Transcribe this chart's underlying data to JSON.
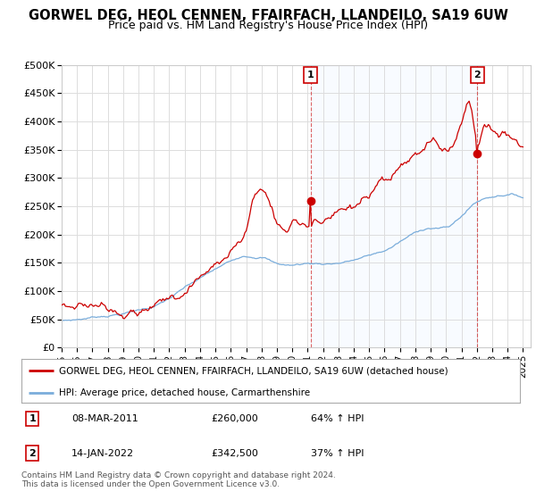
{
  "title": "GORWEL DEG, HEOL CENNEN, FFAIRFACH, LLANDEILO, SA19 6UW",
  "subtitle": "Price paid vs. HM Land Registry's House Price Index (HPI)",
  "title_fontsize": 10.5,
  "subtitle_fontsize": 9,
  "ylabel_ticks": [
    "£0",
    "£50K",
    "£100K",
    "£150K",
    "£200K",
    "£250K",
    "£300K",
    "£350K",
    "£400K",
    "£450K",
    "£500K"
  ],
  "ytick_values": [
    0,
    50000,
    100000,
    150000,
    200000,
    250000,
    300000,
    350000,
    400000,
    450000,
    500000
  ],
  "ylim": [
    0,
    500000
  ],
  "xlim_start": 1995.0,
  "xlim_end": 2025.5,
  "red_line_color": "#cc0000",
  "blue_line_color": "#7aaddb",
  "marker1_x": 2011.18,
  "marker1_y": 260000,
  "marker2_x": 2022.04,
  "marker2_y": 342500,
  "annotation1_label": "1",
  "annotation2_label": "2",
  "legend_red_label": "GORWEL DEG, HEOL CENNEN, FFAIRFACH, LLANDEILO, SA19 6UW (detached house)",
  "legend_blue_label": "HPI: Average price, detached house, Carmarthenshire",
  "table_row1": [
    "1",
    "08-MAR-2011",
    "£260,000",
    "64% ↑ HPI"
  ],
  "table_row2": [
    "2",
    "14-JAN-2022",
    "£342,500",
    "37% ↑ HPI"
  ],
  "footnote": "Contains HM Land Registry data © Crown copyright and database right 2024.\nThis data is licensed under the Open Government Licence v3.0.",
  "bg_color": "#ffffff",
  "grid_color": "#dddddd",
  "highlight_color": "#ddeeff",
  "xtick_years": [
    1995,
    1996,
    1997,
    1998,
    1999,
    2000,
    2001,
    2002,
    2003,
    2004,
    2005,
    2006,
    2007,
    2008,
    2009,
    2010,
    2011,
    2012,
    2013,
    2014,
    2015,
    2016,
    2017,
    2018,
    2019,
    2020,
    2021,
    2022,
    2023,
    2024,
    2025
  ],
  "prop_keypoints_x": [
    1995.0,
    1996.0,
    1997.0,
    1998.0,
    1999.0,
    2000.0,
    2001.0,
    2002.0,
    2003.0,
    2004.0,
    2005.0,
    2006.0,
    2007.0,
    2007.5,
    2008.0,
    2008.5,
    2009.0,
    2009.5,
    2010.0,
    2010.5,
    2011.18,
    2011.5,
    2012.0,
    2013.0,
    2014.0,
    2015.0,
    2016.0,
    2017.0,
    2018.0,
    2019.0,
    2020.0,
    2021.0,
    2021.5,
    2022.04,
    2022.5,
    2023.0,
    2023.5,
    2024.0,
    2024.5,
    2025.0
  ],
  "prop_keypoints_y": [
    75000,
    80000,
    85000,
    88000,
    92000,
    95000,
    100000,
    108000,
    130000,
    155000,
    175000,
    200000,
    240000,
    295000,
    310000,
    290000,
    250000,
    240000,
    255000,
    258000,
    260000,
    265000,
    258000,
    265000,
    270000,
    278000,
    285000,
    300000,
    315000,
    330000,
    320000,
    370000,
    420000,
    342500,
    375000,
    370000,
    365000,
    370000,
    360000,
    355000
  ],
  "hpi_keypoints_x": [
    1995.0,
    1996.0,
    1997.0,
    1998.0,
    1999.0,
    2000.0,
    2001.0,
    2002.0,
    2003.0,
    2004.0,
    2005.0,
    2006.0,
    2007.0,
    2008.0,
    2009.0,
    2010.0,
    2011.0,
    2012.0,
    2013.0,
    2014.0,
    2015.0,
    2016.0,
    2017.0,
    2018.0,
    2019.0,
    2020.0,
    2021.0,
    2022.0,
    2023.0,
    2024.0,
    2025.0
  ],
  "hpi_keypoints_y": [
    48000,
    50000,
    54000,
    58000,
    62000,
    68000,
    75000,
    88000,
    105000,
    120000,
    135000,
    148000,
    160000,
    160000,
    148000,
    145000,
    148000,
    148000,
    150000,
    155000,
    162000,
    170000,
    185000,
    200000,
    210000,
    210000,
    230000,
    255000,
    265000,
    270000,
    265000
  ]
}
